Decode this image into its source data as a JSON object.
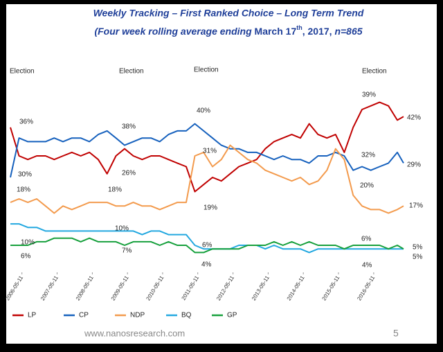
{
  "chart_data": {
    "type": "line",
    "title": "Weekly Tracking – First Ranked Choice – Long Term Trend",
    "subtitle_parts": [
      "(Four week rolling average ending ",
      "March 17",
      "th",
      ", 2017, ",
      "n=865"
    ],
    "x": [
      "2006-01-11",
      "2006-04-11",
      "2006-07-11",
      "2006-10-11",
      "2007-01-11",
      "2007-04-11",
      "2007-07-11",
      "2007-10-11",
      "2008-01-11",
      "2008-04-11",
      "2008-07-11",
      "2008-10-11",
      "2009-01-11",
      "2009-04-11",
      "2009-07-11",
      "2009-10-11",
      "2010-01-11",
      "2010-04-11",
      "2010-07-11",
      "2010-10-11",
      "2011-01-11",
      "2011-04-11",
      "2011-07-11",
      "2011-10-11",
      "2012-01-11",
      "2012-04-11",
      "2012-07-11",
      "2012-10-11",
      "2013-01-11",
      "2013-04-11",
      "2013-07-11",
      "2013-10-11",
      "2014-01-11",
      "2014-04-11",
      "2014-07-11",
      "2014-10-11",
      "2015-01-11",
      "2015-04-11",
      "2015-07-11",
      "2015-10-11",
      "2016-01-11",
      "2016-04-11",
      "2016-07-11",
      "2016-10-11",
      "2017-01-11",
      "2017-03-17"
    ],
    "series": [
      {
        "name": "LP",
        "color": "#c00000",
        "values": [
          39,
          31,
          30,
          31,
          31,
          30,
          31,
          32,
          31,
          32,
          30,
          26,
          31,
          33,
          31,
          30,
          31,
          31,
          30,
          29,
          28,
          21,
          23,
          25,
          24,
          26,
          28,
          29,
          30,
          33,
          35,
          36,
          37,
          36,
          40,
          37,
          36,
          37,
          32,
          39,
          44,
          45,
          46,
          45,
          41,
          42
        ]
      },
      {
        "name": "CP",
        "color": "#1560bd",
        "values": [
          25,
          36,
          35,
          35,
          35,
          36,
          35,
          36,
          36,
          35,
          37,
          38,
          36,
          34,
          35,
          36,
          36,
          35,
          37,
          38,
          38,
          40,
          38,
          36,
          34,
          33,
          33,
          32,
          32,
          31,
          30,
          31,
          30,
          30,
          29,
          31,
          31,
          32,
          31,
          27,
          28,
          27,
          28,
          29,
          32,
          29
        ]
      },
      {
        "name": "NDP",
        "color": "#f39a4c",
        "values": [
          18,
          19,
          18,
          19,
          17,
          15,
          17,
          16,
          17,
          18,
          18,
          18,
          17,
          17,
          18,
          17,
          17,
          16,
          17,
          18,
          18,
          31,
          32,
          28,
          30,
          34,
          32,
          30,
          29,
          27,
          26,
          25,
          24,
          25,
          23,
          24,
          27,
          33,
          30,
          20,
          17,
          16,
          16,
          15,
          16,
          17
        ]
      },
      {
        "name": "BQ",
        "color": "#23a8e0",
        "values": [
          12,
          12,
          11,
          11,
          10,
          10,
          10,
          10,
          10,
          10,
          10,
          10,
          10,
          10,
          10,
          9,
          10,
          10,
          9,
          9,
          9,
          6,
          5,
          5,
          5,
          5,
          6,
          6,
          6,
          5,
          6,
          5,
          5,
          5,
          4,
          5,
          5,
          5,
          5,
          5,
          5,
          5,
          5,
          5,
          5,
          5
        ]
      },
      {
        "name": "GP",
        "color": "#16a03c",
        "values": [
          6,
          6,
          6,
          7,
          7,
          8,
          8,
          8,
          7,
          8,
          7,
          7,
          7,
          6,
          7,
          7,
          7,
          6,
          7,
          6,
          6,
          4,
          4,
          5,
          5,
          5,
          5,
          6,
          6,
          6,
          7,
          6,
          7,
          6,
          7,
          6,
          6,
          6,
          5,
          6,
          6,
          6,
          6,
          5,
          6,
          5
        ]
      }
    ],
    "xlim": [
      "2006-01-11",
      "2017-03-17"
    ],
    "xticks": [
      "2006-05-11",
      "2007-05-11",
      "2008-05-11",
      "2009-05-11",
      "2010-05-11",
      "2011-05-11",
      "2012-05-11",
      "2013-05-11",
      "2014-05-11",
      "2015-05-11",
      "2016-05-11"
    ],
    "ylim": [
      0,
      50
    ],
    "grid": false,
    "annotations": [
      "36%",
      "30%",
      "38%",
      "26%",
      "40%",
      "31%",
      "19%",
      "18%",
      "18%",
      "10%",
      "10%",
      "6%",
      "7%",
      "6%",
      "4%",
      "39%",
      "32%",
      "20%",
      "6%",
      "4%",
      "42%",
      "29%",
      "17%",
      "5%",
      "5%"
    ],
    "elections": [
      "Election",
      "Election",
      "Election",
      "Election"
    ],
    "footer": "www.nanosresearch.com",
    "page_number": "5"
  }
}
